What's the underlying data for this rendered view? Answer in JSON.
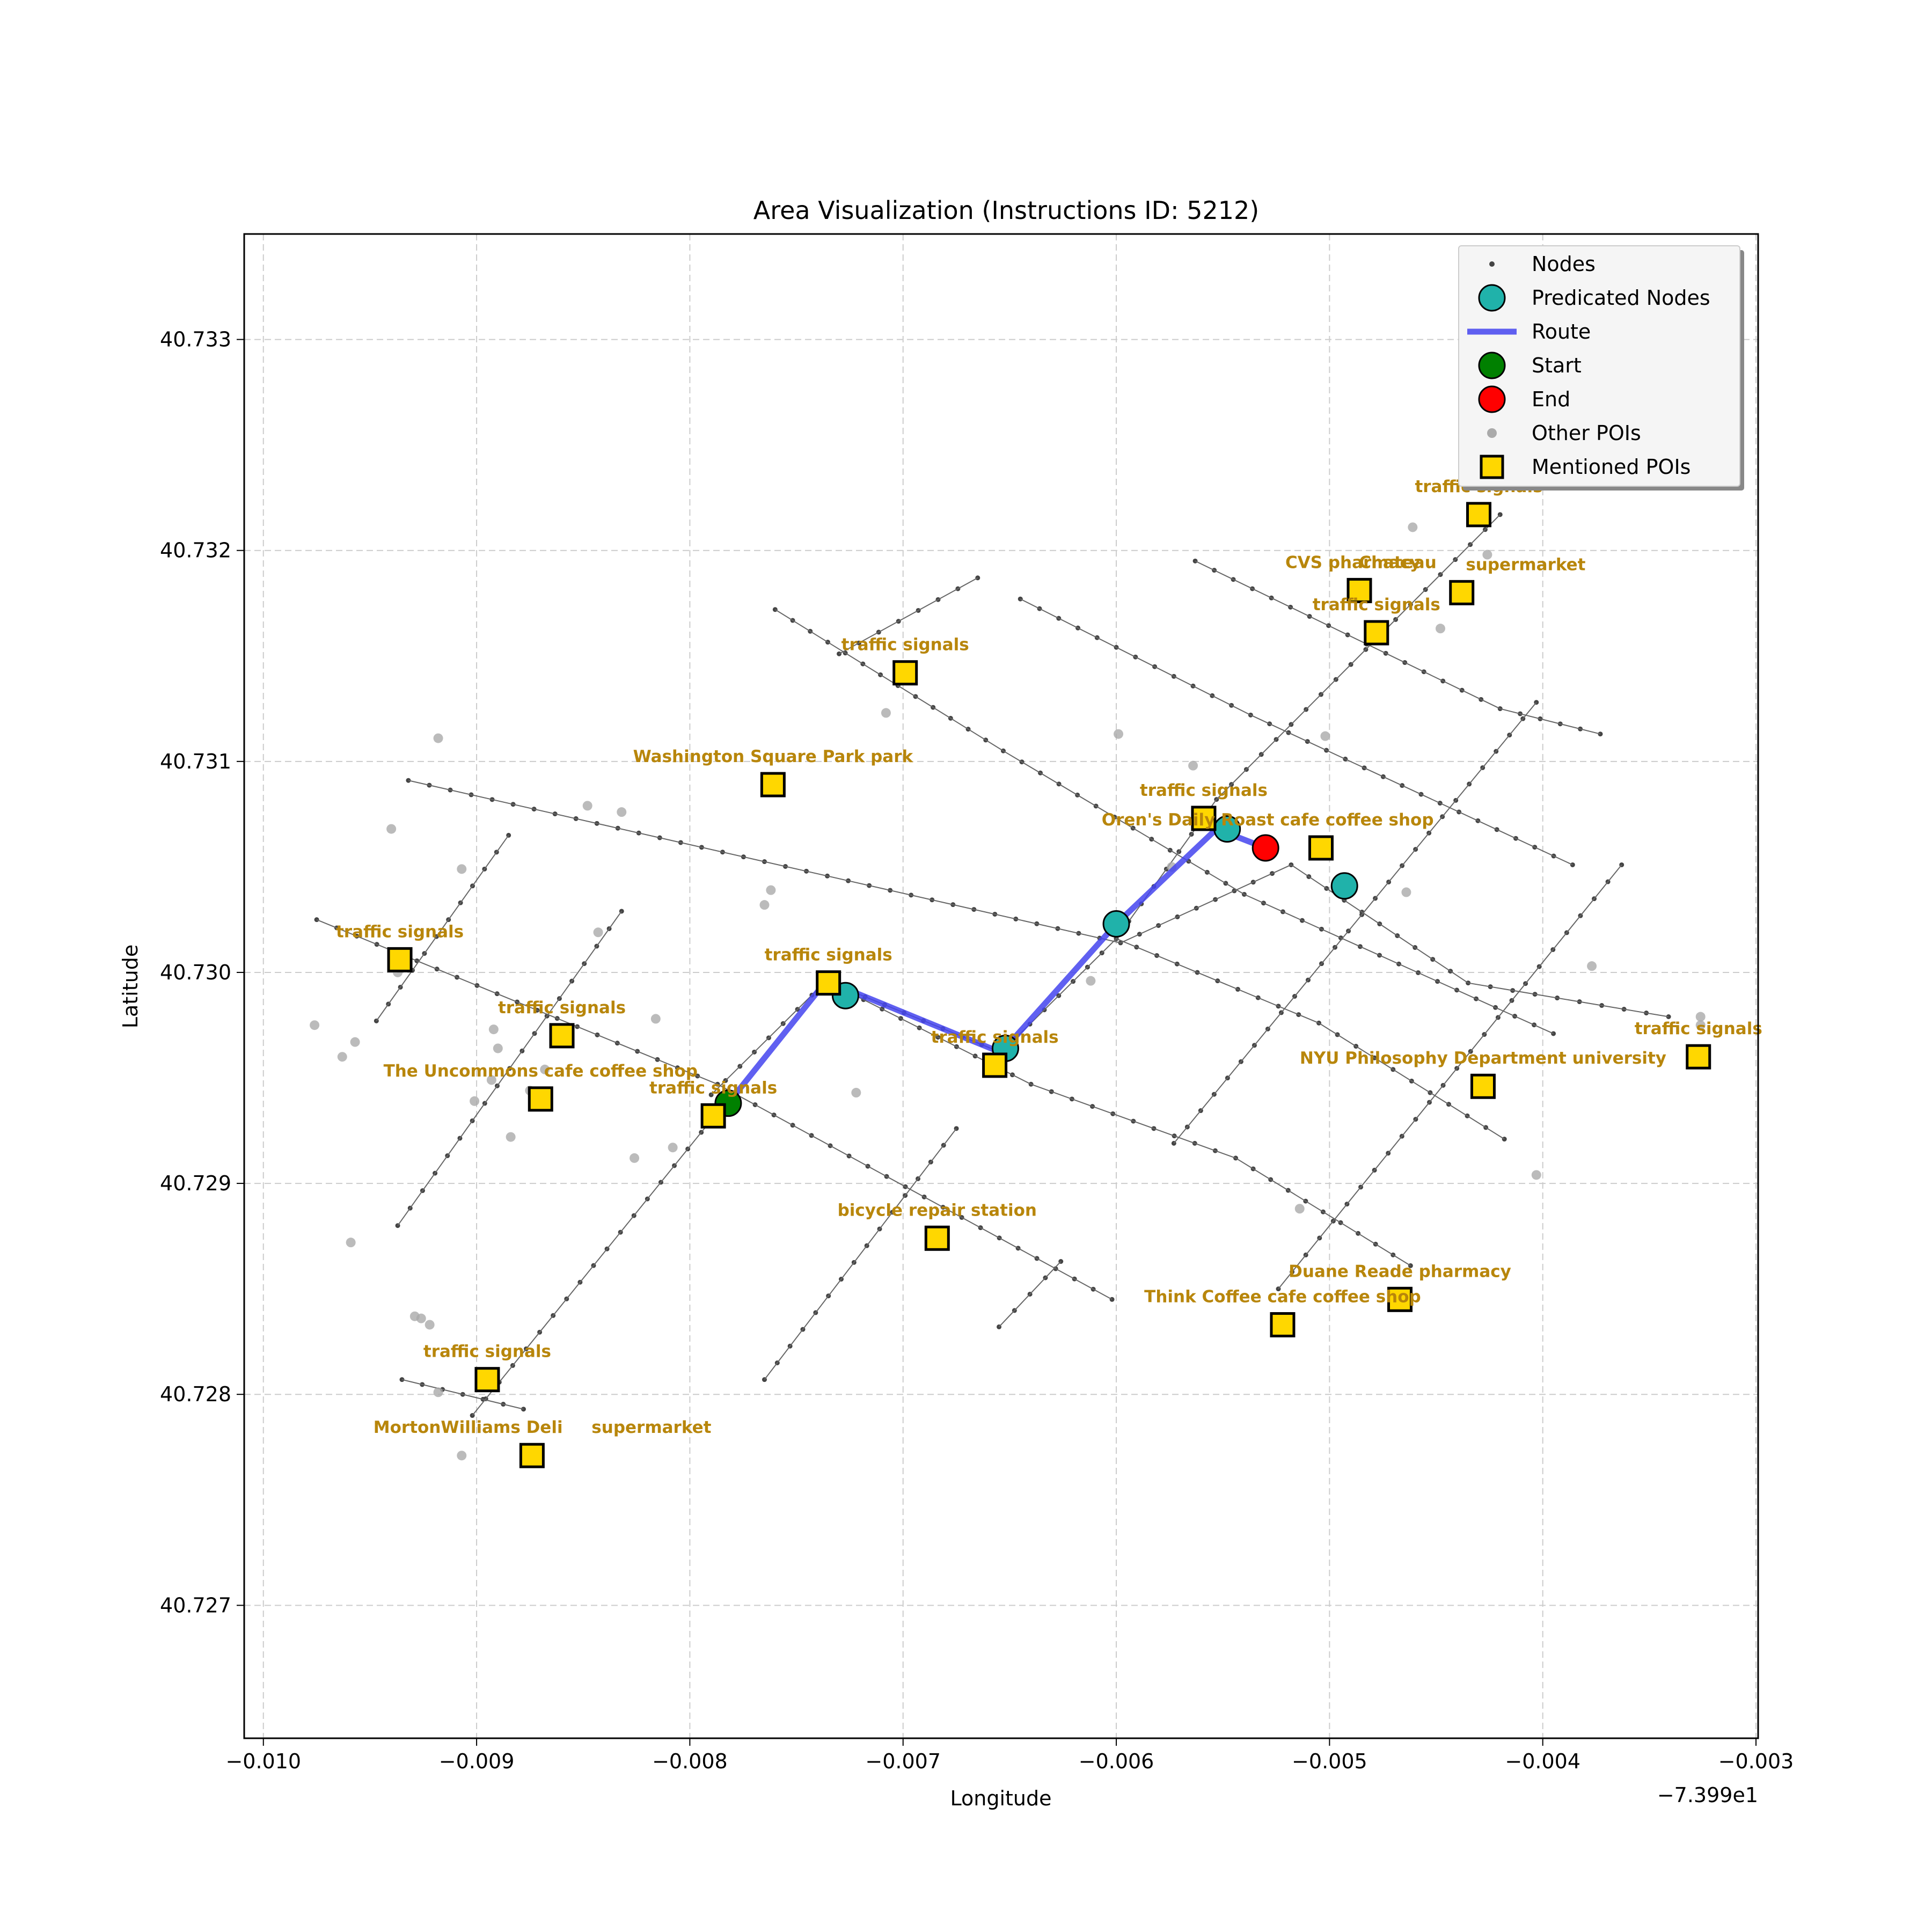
{
  "chart_data": {
    "type": "scatter",
    "title": "Area Visualization (Instructions ID: 5212)",
    "xlabel": "Longitude",
    "ylabel": "Latitude",
    "x_offset_label": "−7.399e1",
    "xlim": [
      -0.01009,
      -0.00299
    ],
    "ylim": [
      40.72637,
      40.7335
    ],
    "xticks": [
      -0.01,
      -0.009,
      -0.008,
      -0.007,
      -0.006,
      -0.005,
      -0.004,
      -0.003
    ],
    "xtick_labels": [
      "−0.010",
      "−0.009",
      "−0.008",
      "−0.007",
      "−0.006",
      "−0.005",
      "−0.004",
      "−0.003"
    ],
    "yticks": [
      40.727,
      40.728,
      40.729,
      40.73,
      40.731,
      40.732,
      40.733
    ],
    "ytick_labels": [
      "40.727",
      "40.728",
      "40.729",
      "40.730",
      "40.731",
      "40.732",
      "40.733"
    ],
    "grid": true,
    "legend_position": "top-right",
    "legend": [
      {
        "key": "nodes",
        "label": "Nodes"
      },
      {
        "key": "pred",
        "label": "Predicated Nodes"
      },
      {
        "key": "route",
        "label": "Route"
      },
      {
        "key": "start",
        "label": "Start"
      },
      {
        "key": "end",
        "label": "End"
      },
      {
        "key": "other",
        "label": "Other POIs"
      },
      {
        "key": "mentioned",
        "label": "Mentioned POIs"
      }
    ],
    "colors": {
      "nodes": "#444444",
      "edges": "#666666",
      "pred": "#20b2aa",
      "route": "#4444ee",
      "start": "#008000",
      "end": "#ff0000",
      "other": "#aaaaaa",
      "mentioned": "#ffd700",
      "poi_text": "#b8860b",
      "grid": "#cccccc"
    },
    "streets": [
      [
        [
          -0.00932,
          40.73091
        ],
        [
          -0.00598,
          40.73014
        ],
        [
          -0.00518,
          40.73051
        ],
        [
          -0.00435,
          40.72995
        ],
        [
          -0.00341,
          40.72979
        ]
      ],
      [
        [
          -0.00975,
          40.73025
        ],
        [
          -0.00787,
          40.72947
        ],
        [
          -0.00602,
          40.72845
        ]
      ],
      [
        [
          -0.0076,
          40.73172
        ],
        [
          -0.00653,
          40.73105
        ],
        [
          -0.0054,
          40.73037
        ],
        [
          -0.00395,
          40.72971
        ]
      ],
      [
        [
          -0.00645,
          40.73177
        ],
        [
          -0.00537,
          40.73122
        ],
        [
          -0.00386,
          40.73051
        ]
      ],
      [
        [
          -0.00563,
          40.73195
        ],
        [
          -0.0042,
          40.73125
        ],
        [
          -0.00373,
          40.73113
        ]
      ],
      [
        [
          -0.00736,
          40.72996
        ],
        [
          -0.0064,
          40.72947
        ],
        [
          -0.00544,
          40.72912
        ],
        [
          -0.00462,
          40.72861
        ]
      ],
      [
        [
          -0.006,
          40.73016
        ],
        [
          -0.00505,
          40.72976
        ],
        [
          -0.00418,
          40.72921
        ]
      ],
      [
        [
          -0.00947,
          40.72977
        ],
        [
          -0.00885,
          40.73065
        ]
      ],
      [
        [
          -0.00937,
          40.7288
        ],
        [
          -0.00832,
          40.73029
        ]
      ],
      [
        [
          -0.00902,
          40.7279
        ],
        [
          -0.00782,
          40.7294
        ]
      ],
      [
        [
          -0.0079,
          40.72942
        ],
        [
          -0.00736,
          40.72996
        ],
        [
          -0.00654,
          40.72962
        ],
        [
          -0.006,
          40.73016
        ],
        [
          -0.00553,
          40.73082
        ],
        [
          -0.0042,
          40.73217
        ]
      ],
      [
        [
          -0.00765,
          40.72807
        ],
        [
          -0.00675,
          40.72926
        ]
      ],
      [
        [
          -0.00655,
          40.72832
        ],
        [
          -0.00626,
          40.72863
        ]
      ],
      [
        [
          -0.00573,
          40.72919
        ],
        [
          -0.00403,
          40.73128
        ]
      ],
      [
        [
          -0.00524,
          40.7285
        ],
        [
          -0.00363,
          40.73051
        ]
      ],
      [
        [
          -0.0073,
          40.73151
        ],
        [
          -0.00665,
          40.73187
        ]
      ],
      [
        [
          -0.00935,
          40.72807
        ],
        [
          -0.00878,
          40.72793
        ]
      ]
    ],
    "route": [
      [
        -0.00782,
        40.72938
      ],
      [
        -0.00736,
        40.72996
      ],
      [
        -0.00654,
        40.72962
      ],
      [
        -0.006,
        40.73023
      ],
      [
        -0.00553,
        40.73068
      ],
      [
        -0.0053,
        40.73059
      ]
    ],
    "predicted_nodes": [
      [
        -0.00727,
        40.72989
      ],
      [
        -0.00652,
        40.72964
      ],
      [
        -0.006,
        40.73023
      ],
      [
        -0.00548,
        40.73068
      ],
      [
        -0.00493,
        40.73041
      ]
    ],
    "start": [
      -0.00782,
      40.72938
    ],
    "end": [
      -0.0053,
      40.73059
    ],
    "other_pois": [
      [
        -0.00918,
        40.73111
      ],
      [
        -0.0094,
        40.73068
      ],
      [
        -0.00848,
        40.73079
      ],
      [
        -0.00832,
        40.73076
      ],
      [
        -0.00907,
        40.73049
      ],
      [
        -0.00843,
        40.73019
      ],
      [
        -0.00976,
        40.72975
      ],
      [
        -0.00957,
        40.72967
      ],
      [
        -0.00963,
        40.7296
      ],
      [
        -0.00937,
        40.73
      ],
      [
        -0.00892,
        40.72973
      ],
      [
        -0.0089,
        40.72964
      ],
      [
        -0.00893,
        40.72949
      ],
      [
        -0.00875,
        40.72944
      ],
      [
        -0.00868,
        40.72954
      ],
      [
        -0.00901,
        40.72939
      ],
      [
        -0.00884,
        40.72922
      ],
      [
        -0.00816,
        40.72978
      ],
      [
        -0.00808,
        40.72917
      ],
      [
        -0.00826,
        40.72912
      ],
      [
        -0.00959,
        40.72872
      ],
      [
        -0.00929,
        40.72837
      ],
      [
        -0.00926,
        40.72836
      ],
      [
        -0.00922,
        40.72833
      ],
      [
        -0.00918,
        40.72801
      ],
      [
        -0.00907,
        40.72771
      ],
      [
        -0.00762,
        40.73039
      ],
      [
        -0.00765,
        40.73032
      ],
      [
        -0.00708,
        40.73123
      ],
      [
        -0.00722,
        40.72943
      ],
      [
        -0.00612,
        40.72996
      ],
      [
        -0.00599,
        40.73113
      ],
      [
        -0.00564,
        40.73098
      ],
      [
        -0.00574,
        40.7305
      ],
      [
        -0.00502,
        40.73112
      ],
      [
        -0.00464,
        40.73038
      ],
      [
        -0.00461,
        40.73211
      ],
      [
        -0.00448,
        40.73163
      ],
      [
        -0.00426,
        40.73198
      ],
      [
        -0.00377,
        40.73003
      ],
      [
        -0.00403,
        40.72904
      ],
      [
        -0.00326,
        40.72979
      ],
      [
        -0.00326,
        40.72975
      ],
      [
        -0.00514,
        40.72888
      ]
    ],
    "mentioned_pois": [
      {
        "x": -0.0043,
        "y": 40.73217,
        "label": "traffic signals",
        "label_dx": 0
      },
      {
        "x": -0.00486,
        "y": 40.73181,
        "label": "CVS pharmacy",
        "label_dx": -3e-05
      },
      {
        "x": -0.00486,
        "y": 40.73181,
        "label": "Chateau",
        "label_dx": 0.00018
      },
      {
        "x": -0.00438,
        "y": 40.7318,
        "label": "supermarket",
        "label_dx": 0.0003
      },
      {
        "x": -0.00478,
        "y": 40.73161,
        "label": "traffic signals",
        "label_dx": 0
      },
      {
        "x": -0.00699,
        "y": 40.73142,
        "label": "traffic signals",
        "label_dx": 0
      },
      {
        "x": -0.00761,
        "y": 40.73089,
        "label": "Washington Square Park   park",
        "label_dx": 0
      },
      {
        "x": -0.00559,
        "y": 40.73073,
        "label": "traffic signals",
        "label_dx": 0
      },
      {
        "x": -0.00504,
        "y": 40.73059,
        "label": "Oren's Daily Roast cafe coffee shop",
        "label_dx": -0.00025
      },
      {
        "x": -0.00936,
        "y": 40.73006,
        "label": "traffic signals",
        "label_dx": 0
      },
      {
        "x": -0.00735,
        "y": 40.72995,
        "label": "traffic signals",
        "label_dx": 0
      },
      {
        "x": -0.0086,
        "y": 40.7297,
        "label": "traffic signals",
        "label_dx": 0
      },
      {
        "x": -0.00657,
        "y": 40.72956,
        "label": "traffic signals",
        "label_dx": 0
      },
      {
        "x": -0.0087,
        "y": 40.7294,
        "label": "The Uncommons cafe coffee shop",
        "label_dx": 0
      },
      {
        "x": -0.00789,
        "y": 40.72932,
        "label": "traffic signals",
        "label_dx": 0
      },
      {
        "x": -0.00428,
        "y": 40.72946,
        "label": "NYU Philosophy Department university",
        "label_dx": 0
      },
      {
        "x": -0.00327,
        "y": 40.7296,
        "label": "traffic signals",
        "label_dx": 0
      },
      {
        "x": -0.00684,
        "y": 40.72874,
        "label": "bicycle repair station",
        "label_dx": 0
      },
      {
        "x": -0.00467,
        "y": 40.72845,
        "label": "Duane Reade pharmacy",
        "label_dx": 0
      },
      {
        "x": -0.00522,
        "y": 40.72833,
        "label": "Think Coffee cafe coffee shop",
        "label_dx": 0
      },
      {
        "x": -0.00895,
        "y": 40.72807,
        "label": "traffic signals",
        "label_dx": 0
      },
      {
        "x": -0.00874,
        "y": 40.72771,
        "label": "MortonWilliams Deli",
        "label_dx": -0.0003
      },
      {
        "x": -0.00874,
        "y": 40.72771,
        "label": "supermarket",
        "label_dx": 0.00056
      }
    ]
  }
}
